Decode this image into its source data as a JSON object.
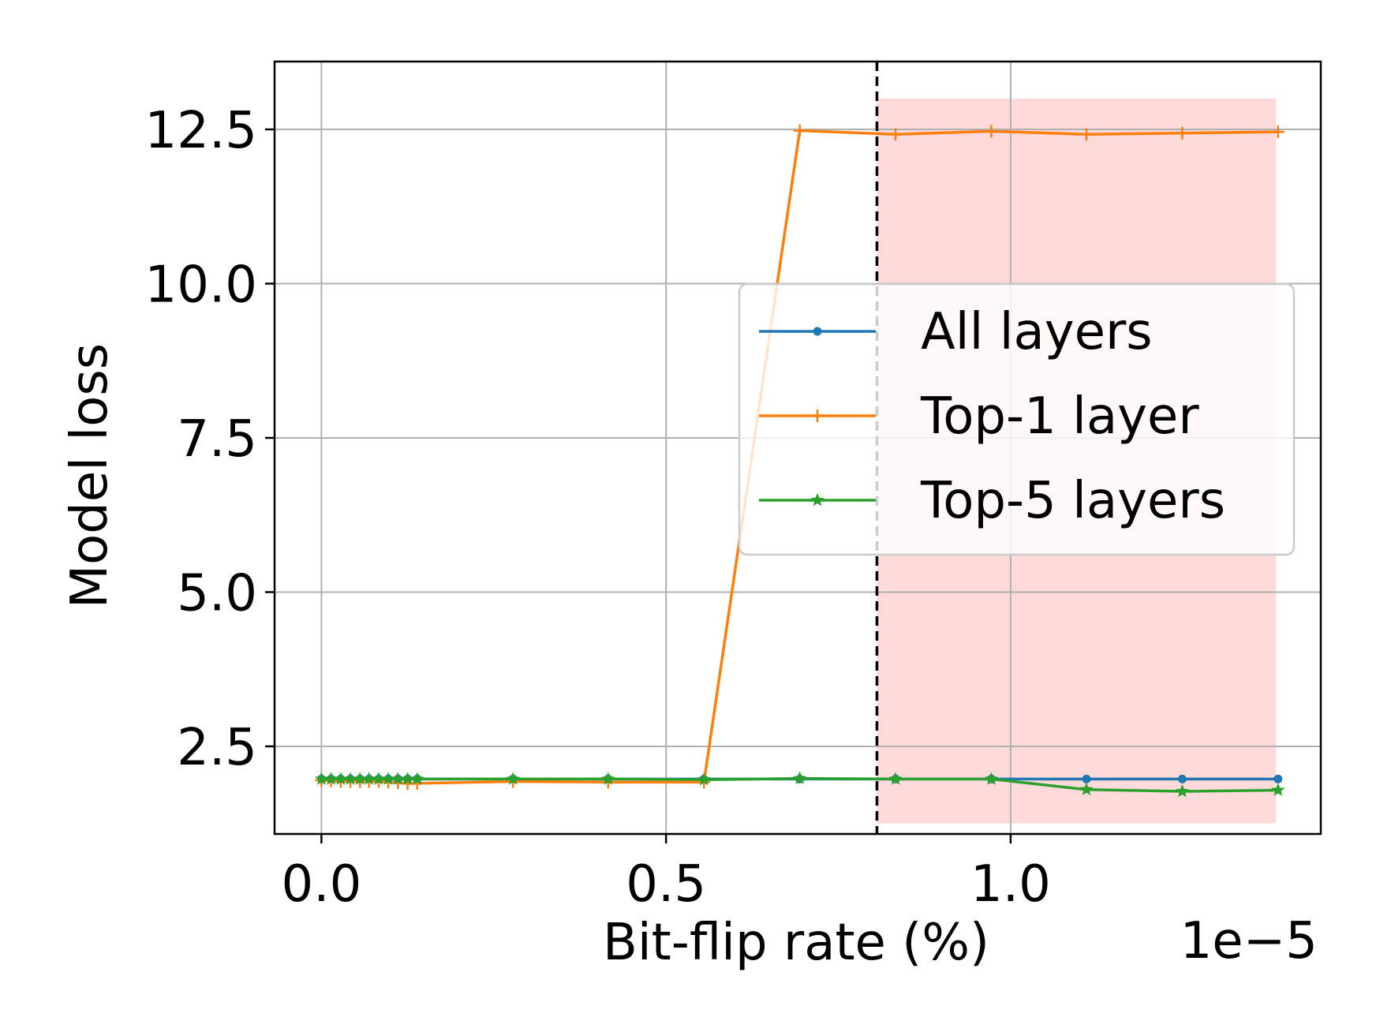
{
  "chart_data": {
    "type": "line",
    "title": "",
    "xlabel": "Bit-flip rate (%)",
    "ylabel": "Model loss",
    "x_offset_label": "1e−5",
    "x_scale": 1e-05,
    "xlim": [
      -0.068,
      1.45
    ],
    "ylim": [
      1.08,
      13.6
    ],
    "x_ticks": [
      0.0,
      0.5,
      1.0
    ],
    "x_tick_labels": [
      "0.0",
      "0.5",
      "1.0"
    ],
    "y_ticks": [
      2.5,
      5.0,
      7.5,
      10.0,
      12.5
    ],
    "y_tick_labels": [
      "2.5",
      "5.0",
      "7.5",
      "10.0",
      "12.5"
    ],
    "grid": true,
    "legend_position": "right",
    "threshold_line": {
      "x": 0.806,
      "style": "dashed",
      "color": "#000000"
    },
    "shaded_region": {
      "x": [
        0.806,
        1.385
      ],
      "y": [
        1.25,
        13.0
      ],
      "color": "#ffdada"
    },
    "series": [
      {
        "name": "All layers",
        "color": "#1f77b4",
        "marker": "point",
        "x": [
          0.0,
          0.014,
          0.028,
          0.042,
          0.056,
          0.069,
          0.083,
          0.097,
          0.111,
          0.125,
          0.139,
          0.278,
          0.416,
          0.555,
          0.694,
          0.833,
          0.972,
          1.11,
          1.249,
          1.388
        ],
        "y": [
          1.97,
          1.97,
          1.97,
          1.97,
          1.97,
          1.97,
          1.97,
          1.97,
          1.97,
          1.97,
          1.97,
          1.97,
          1.97,
          1.97,
          1.97,
          1.97,
          1.97,
          1.97,
          1.97,
          1.97
        ]
      },
      {
        "name": "Top-1 layer",
        "color": "#ff7f0e",
        "marker": "plus",
        "x": [
          0.0,
          0.014,
          0.028,
          0.042,
          0.056,
          0.069,
          0.083,
          0.097,
          0.111,
          0.125,
          0.139,
          0.278,
          0.416,
          0.555,
          0.694,
          0.833,
          0.972,
          1.11,
          1.249,
          1.388
        ],
        "y": [
          1.95,
          1.94,
          1.93,
          1.93,
          1.93,
          1.93,
          1.93,
          1.92,
          1.91,
          1.9,
          1.9,
          1.93,
          1.92,
          1.92,
          12.48,
          12.42,
          12.47,
          12.42,
          12.44,
          12.46
        ]
      },
      {
        "name": "Top-5 layers",
        "color": "#2ca02c",
        "marker": "star",
        "x": [
          0.0,
          0.014,
          0.028,
          0.042,
          0.056,
          0.069,
          0.083,
          0.097,
          0.111,
          0.125,
          0.139,
          0.278,
          0.416,
          0.555,
          0.694,
          0.833,
          0.972,
          1.11,
          1.249,
          1.388
        ],
        "y": [
          1.97,
          1.97,
          1.97,
          1.97,
          1.97,
          1.97,
          1.97,
          1.97,
          1.97,
          1.97,
          1.97,
          1.97,
          1.97,
          1.96,
          1.98,
          1.97,
          1.97,
          1.8,
          1.77,
          1.79
        ]
      }
    ]
  }
}
